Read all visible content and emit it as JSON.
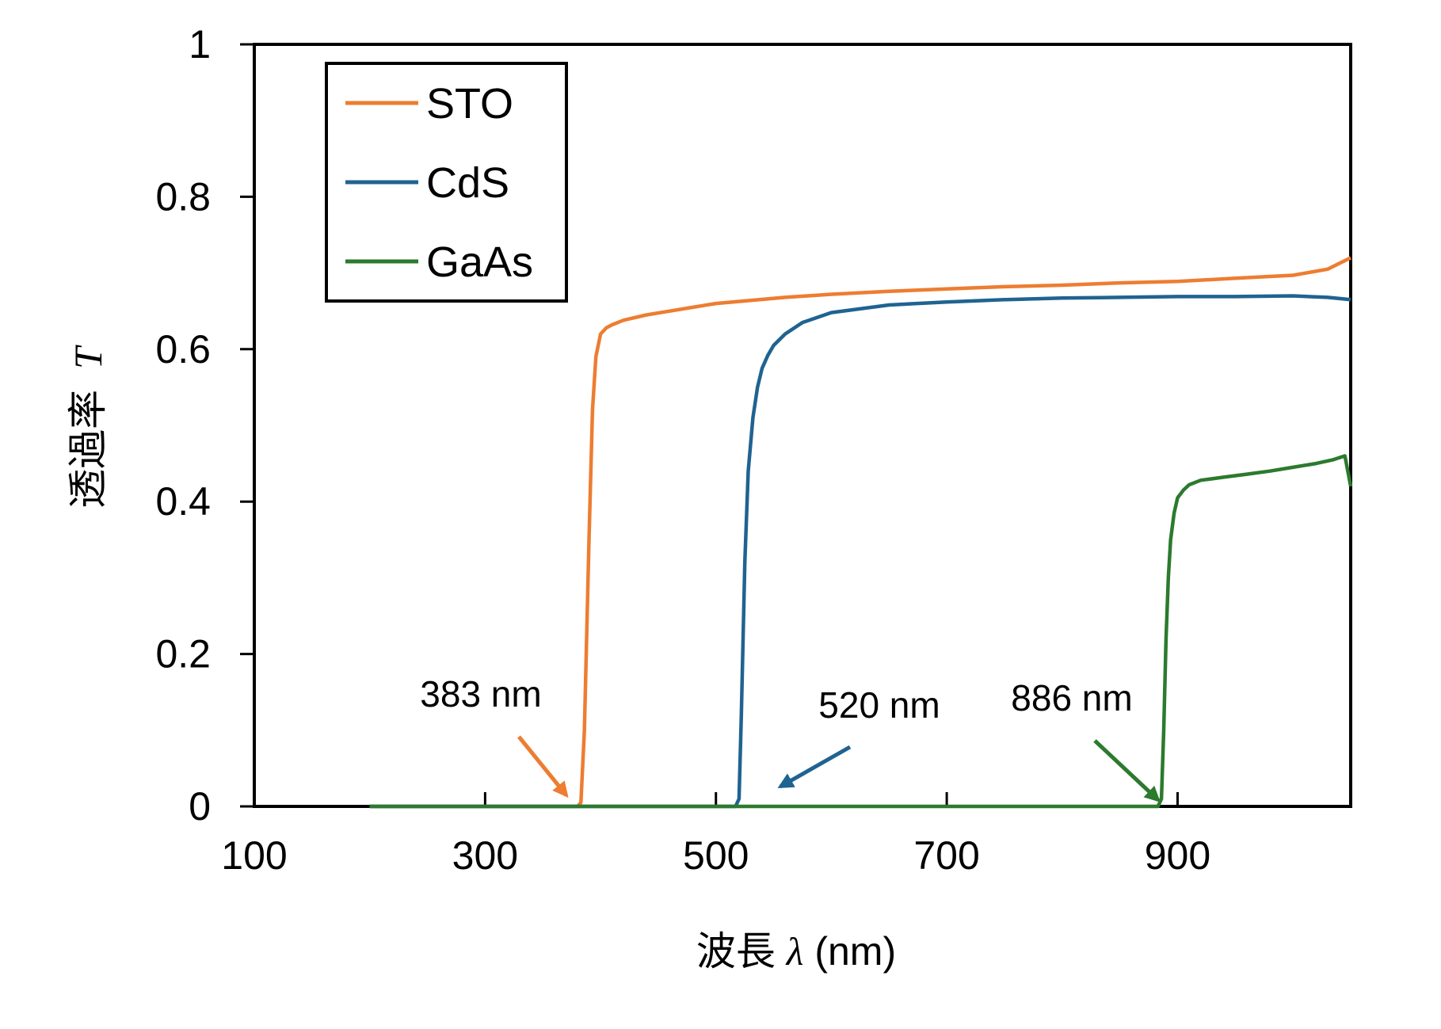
{
  "chart_data": {
    "type": "line",
    "xlabel_prefix": "波長",
    "xlabel_symbol": "λ",
    "xlabel_unit": "(nm)",
    "ylabel_prefix": "透過率",
    "ylabel_symbol": "T",
    "xlim": [
      100,
      1050
    ],
    "ylim": [
      0,
      1
    ],
    "xticks": [
      100,
      300,
      500,
      700,
      900
    ],
    "xtick_labels": [
      "100",
      "300",
      "500",
      "700",
      "900"
    ],
    "yticks": [
      0,
      0.2,
      0.4,
      0.6,
      0.8,
      1
    ],
    "ytick_labels": [
      "0",
      "0.2",
      "0.4",
      "0.6",
      "0.8",
      "1"
    ],
    "grid": false,
    "legend_position": "top-left",
    "series": [
      {
        "name": "STO",
        "color": "#ED7D31",
        "x": [
          200,
          300,
          380,
          383,
          386,
          390,
          393,
          396,
          400,
          405,
          410,
          420,
          440,
          460,
          480,
          500,
          530,
          560,
          600,
          650,
          700,
          750,
          800,
          850,
          900,
          950,
          1000,
          1030,
          1050
        ],
        "y": [
          0,
          0,
          0,
          0.005,
          0.1,
          0.35,
          0.52,
          0.59,
          0.62,
          0.628,
          0.632,
          0.638,
          0.645,
          0.65,
          0.655,
          0.66,
          0.664,
          0.668,
          0.672,
          0.676,
          0.679,
          0.682,
          0.684,
          0.687,
          0.689,
          0.693,
          0.697,
          0.705,
          0.72
        ]
      },
      {
        "name": "CdS",
        "color": "#1F6391",
        "x": [
          200,
          400,
          517,
          520,
          522,
          525,
          528,
          532,
          536,
          540,
          545,
          550,
          560,
          575,
          600,
          650,
          700,
          750,
          800,
          850,
          900,
          950,
          1000,
          1030,
          1050
        ],
        "y": [
          0,
          0,
          0,
          0.01,
          0.12,
          0.32,
          0.44,
          0.51,
          0.55,
          0.575,
          0.592,
          0.605,
          0.62,
          0.635,
          0.648,
          0.658,
          0.662,
          0.665,
          0.667,
          0.668,
          0.669,
          0.669,
          0.67,
          0.668,
          0.665
        ]
      },
      {
        "name": "GaAs",
        "color": "#2C7A2E",
        "x": [
          200,
          400,
          600,
          800,
          883,
          886,
          888,
          890,
          892,
          894,
          897,
          900,
          905,
          910,
          920,
          940,
          960,
          980,
          1000,
          1020,
          1035,
          1045,
          1050
        ],
        "y": [
          0,
          0,
          0,
          0,
          0,
          0.01,
          0.1,
          0.22,
          0.3,
          0.35,
          0.385,
          0.405,
          0.415,
          0.422,
          0.428,
          0.432,
          0.436,
          0.44,
          0.445,
          0.45,
          0.455,
          0.46,
          0.42
        ]
      }
    ],
    "annotations": [
      {
        "text": "383 nm",
        "color": "#ED7D31",
        "x": 383
      },
      {
        "text": "520 nm",
        "color": "#1F6391",
        "x": 520
      },
      {
        "text": "886 nm",
        "color": "#2C7A2E",
        "x": 886
      }
    ]
  }
}
